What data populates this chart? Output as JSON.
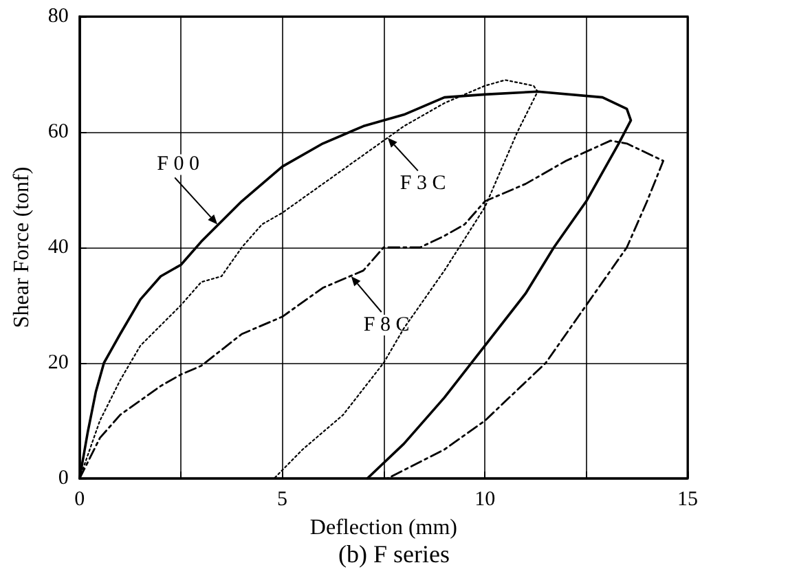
{
  "chart_data": {
    "type": "line",
    "title": "(b) F series",
    "xlabel": "Deflection (mm)",
    "ylabel": "Shear Force (tonf)",
    "xlim": [
      0,
      15
    ],
    "xticks": [
      0,
      {
        "value": 2.5,
        "label": null
      },
      5,
      {
        "value": 7.5,
        "label": null
      },
      10,
      {
        "value": 12.5,
        "label": null
      },
      15
    ],
    "ylim": [
      0,
      80
    ],
    "yticks": [
      0,
      20,
      40,
      60,
      80
    ],
    "grid": true,
    "marker": "none",
    "series": [
      {
        "color": "#000000",
        "line_style": "solid",
        "x": [
          0,
          0.2,
          0.4,
          0.6,
          1,
          1.5,
          2,
          2.5,
          3,
          4,
          5,
          6,
          7,
          8,
          9,
          10,
          11.3,
          12.9,
          13.5,
          13.6,
          13.3,
          12.5,
          11.7,
          11,
          10,
          9,
          8,
          7.1
        ],
        "values": [
          0,
          8,
          15,
          20,
          25,
          31,
          35,
          37,
          41,
          48,
          54,
          58,
          61,
          63,
          66,
          66.5,
          67,
          66,
          64,
          62,
          58,
          48,
          40,
          32,
          23,
          14,
          6,
          0
        ]
      },
      {
        "color": "#000000",
        "line_style": "dotted",
        "x": [
          0,
          0.5,
          1,
          1.5,
          2.5,
          3,
          3.5,
          4,
          4.5,
          5,
          6,
          7,
          8,
          9,
          10,
          10.5,
          11.2,
          11.3,
          10.8,
          10,
          9,
          8,
          7.5,
          6.5,
          5.5,
          4.8
        ],
        "values": [
          0,
          10,
          17,
          23,
          30,
          34,
          35,
          40,
          44,
          46,
          51,
          56,
          61,
          65,
          68,
          69,
          68,
          67,
          60,
          47,
          36,
          26,
          20,
          11,
          5,
          0
        ]
      },
      {
        "color": "#000000",
        "line_style": "dashed",
        "x": [
          0,
          0.5,
          1,
          2,
          2.5,
          3,
          4,
          5,
          6,
          7,
          7.5,
          8.4,
          9,
          9.5,
          10,
          11,
          12,
          13.1,
          13.5,
          14.4,
          14,
          13.5,
          12.5,
          11.5,
          10,
          9,
          7.6
        ],
        "values": [
          0,
          7,
          11,
          16,
          18,
          19.5,
          25,
          28,
          33,
          36,
          40,
          40,
          42,
          44,
          48,
          51,
          55,
          58.5,
          58,
          55,
          48,
          40,
          30,
          20,
          10,
          5,
          0
        ]
      }
    ],
    "annotations": [
      {
        "text": "F 0 0",
        "x": 3.4,
        "y": 44
      },
      {
        "text": "F 3 C",
        "x": 7.6,
        "y": 59
      },
      {
        "text": "F 8 C",
        "x": 6.7,
        "y": 35
      }
    ]
  }
}
